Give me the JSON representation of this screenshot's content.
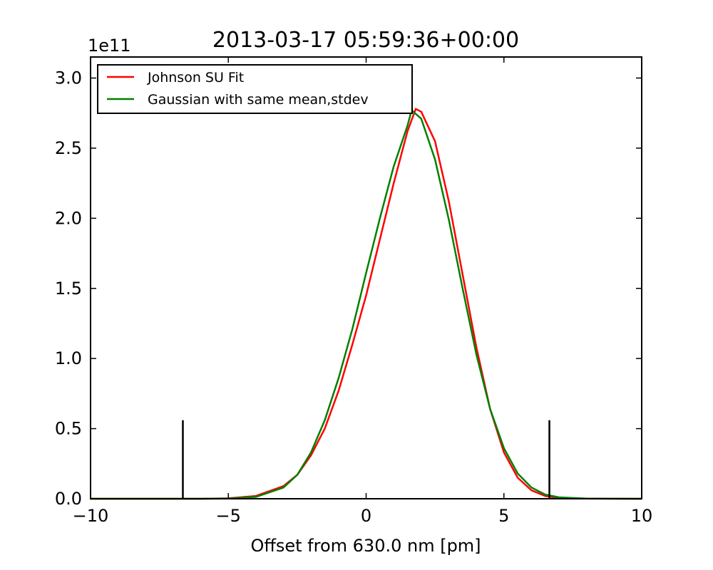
{
  "chart_data": {
    "type": "line",
    "title": "2013-03-17 05:59:36+00:00",
    "xlabel": "Offset from 630.0 nm [pm]",
    "ylabel": "",
    "y_offset_label": "1e11",
    "xlim": [
      -10,
      10
    ],
    "ylim": [
      0,
      3.15
    ],
    "y_scale": 100000000000.0,
    "x_ticks": [
      -10,
      -5,
      0,
      5,
      10
    ],
    "x_tick_labels": [
      "−10",
      "−5",
      "0",
      "5",
      "10"
    ],
    "y_ticks": [
      0.0,
      0.5,
      1.0,
      1.5,
      2.0,
      2.5,
      3.0
    ],
    "y_tick_labels": [
      "0.0",
      "0.5",
      "1.0",
      "1.5",
      "2.0",
      "2.5",
      "3.0"
    ],
    "grid": false,
    "legend_position": "top-left",
    "series": [
      {
        "name": "Johnson SU Fit",
        "color": "#ff0000",
        "x": [
          -10,
          -6,
          -5,
          -4,
          -3,
          -2.5,
          -2,
          -1.5,
          -1,
          -0.5,
          0,
          0.5,
          1,
          1.5,
          1.8,
          2,
          2.5,
          3,
          3.5,
          4,
          4.5,
          5,
          5.5,
          6,
          6.5,
          7,
          8,
          10
        ],
        "y": [
          0,
          0.0,
          0.003,
          0.02,
          0.09,
          0.17,
          0.31,
          0.5,
          0.77,
          1.1,
          1.45,
          1.85,
          2.25,
          2.62,
          2.78,
          2.76,
          2.55,
          2.12,
          1.6,
          1.08,
          0.64,
          0.33,
          0.15,
          0.06,
          0.02,
          0.005,
          0.001,
          0
        ]
      },
      {
        "name": "Gaussian with same mean,stdev",
        "color": "#008000",
        "x": [
          -10,
          -6,
          -5,
          -4,
          -3,
          -2.5,
          -2,
          -1.5,
          -1,
          -0.5,
          0,
          0.5,
          1,
          1.5,
          1.65,
          2,
          2.5,
          3,
          3.5,
          4,
          4.5,
          5,
          5.5,
          6,
          6.5,
          7,
          8,
          10
        ],
        "y": [
          0,
          0.0,
          0.001,
          0.013,
          0.08,
          0.17,
          0.33,
          0.56,
          0.86,
          1.21,
          1.61,
          2.0,
          2.37,
          2.66,
          2.77,
          2.71,
          2.42,
          1.99,
          1.5,
          1.03,
          0.64,
          0.36,
          0.18,
          0.08,
          0.03,
          0.01,
          0.001,
          0
        ]
      }
    ],
    "vertical_markers": {
      "color": "#000000",
      "x": [
        -6.65,
        6.65
      ],
      "height": 0.56
    }
  }
}
